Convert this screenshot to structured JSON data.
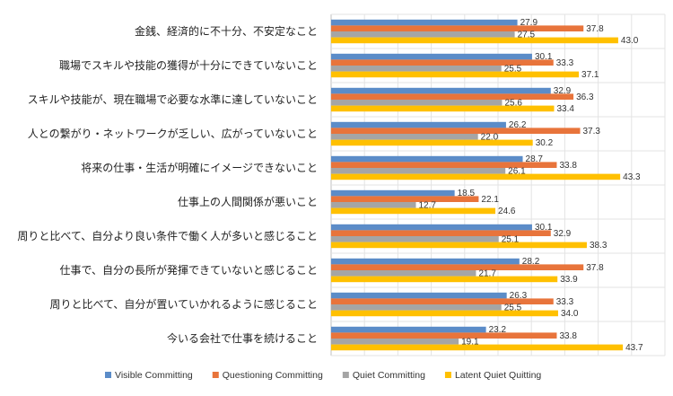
{
  "chart_data": {
    "type": "bar",
    "orientation": "horizontal",
    "title": "",
    "xlabel": "",
    "ylabel": "",
    "xlim": [
      0,
      50
    ],
    "grid": true,
    "legend_position": "bottom",
    "categories": [
      "金銭、経済的に不十分、不安定なこと",
      "職場でスキルや技能の獲得が十分にできていないこと",
      "スキルや技能が、現在職場で必要な水準に達していないこと",
      "人との繋がり・ネットワークが乏しい、広がっていないこと",
      "将来の仕事・生活が明確にイメージできないこと",
      "仕事上の人間関係が悪いこと",
      "周りと比べて、自分より良い条件で働く人が多いと感じること",
      "仕事で、自分の長所が発揮できていないと感じること",
      "周りと比べて、自分が置いていかれるように感じること",
      "今いる会社で仕事を続けること"
    ],
    "series": [
      {
        "name": "Visible Committing",
        "color": "#5B8CC8",
        "values": [
          27.9,
          30.1,
          32.9,
          26.2,
          28.7,
          18.5,
          30.1,
          28.2,
          26.3,
          23.2
        ]
      },
      {
        "name": "Questioning Committing",
        "color": "#E8743B",
        "values": [
          37.8,
          33.3,
          36.3,
          37.3,
          33.8,
          22.1,
          32.9,
          37.8,
          33.3,
          33.8
        ]
      },
      {
        "name": "Quiet Committing",
        "color": "#A5A5A5",
        "values": [
          27.5,
          25.5,
          25.6,
          22.0,
          26.1,
          12.7,
          25.1,
          21.7,
          25.5,
          19.1
        ]
      },
      {
        "name": "Latent Quiet Quitting",
        "color": "#FFC000",
        "values": [
          43.0,
          37.1,
          33.4,
          30.2,
          43.3,
          24.6,
          38.3,
          33.9,
          34.0,
          43.7
        ]
      }
    ]
  }
}
